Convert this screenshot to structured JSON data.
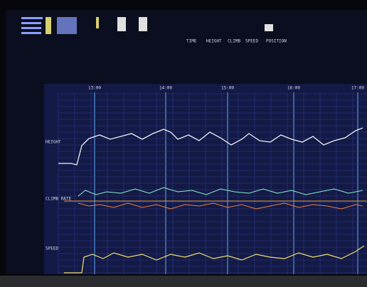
{
  "header": {
    "readout_labels": [
      "TIME",
      "HEIGHT",
      "CLIMB",
      "SPEED",
      "POSITION"
    ]
  },
  "time_axis": [
    "13:00",
    "14:00",
    "15:00",
    "16:00",
    "17:00"
  ],
  "panels": [
    "HEIGHT",
    "CLIMB RATE",
    "SPEED"
  ]
}
